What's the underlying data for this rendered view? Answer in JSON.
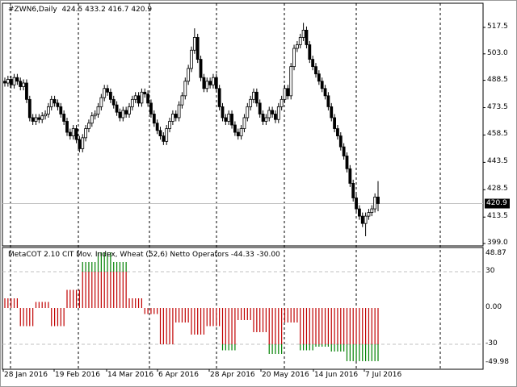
{
  "header": {
    "symbol": "#ZWN6,Daily",
    "ohlc": "424.5 433.2 416.7 420.9"
  },
  "indicator": {
    "label": "MetaCOT 2.10 CIT Mov. Index, Wheat (52,6) Netto Operators -44.33 -30.00"
  },
  "colors": {
    "bull": "#ffffff",
    "bear": "#000000",
    "hist_red": "#c00000",
    "hist_green": "#008000",
    "current_price_bg": "#000000"
  },
  "chart_data": [
    {
      "type": "candlestick",
      "symbol": "#ZWN6",
      "timeframe": "Daily",
      "y_ticks": [
        "517.5",
        "503.0",
        "488.5",
        "473.5",
        "458.5",
        "443.5",
        "428.5",
        "413.5",
        "399.0"
      ],
      "ylim": [
        399.0,
        517.5
      ],
      "current_price": "420.9",
      "close": [
        487,
        489,
        486,
        490,
        488,
        485,
        487,
        478,
        468,
        466,
        468,
        467,
        469,
        470,
        474,
        478,
        476,
        474,
        470,
        466,
        460,
        458,
        462,
        456,
        451,
        457,
        462,
        465,
        469,
        470,
        474,
        479,
        484,
        482,
        478,
        475,
        471,
        468,
        472,
        470,
        474,
        478,
        480,
        476,
        482,
        481,
        476,
        470,
        465,
        461,
        458,
        455,
        462,
        466,
        470,
        468,
        475,
        480,
        488,
        495,
        505,
        512,
        500,
        490,
        484,
        488,
        486,
        490,
        484,
        474,
        468,
        466,
        470,
        464,
        460,
        458,
        462,
        468,
        474,
        478,
        482,
        476,
        470,
        466,
        468,
        472,
        470,
        467,
        474,
        478,
        484,
        480,
        496,
        506,
        508,
        512,
        516,
        508,
        500,
        496,
        492,
        488,
        484,
        480,
        474,
        468,
        462,
        458,
        452,
        447,
        440,
        432,
        424,
        418,
        414,
        410,
        414,
        416,
        418,
        424.5,
        420.9
      ],
      "last_bar": {
        "open": 424.5,
        "high": 433.2,
        "low": 416.7,
        "close": 420.9
      },
      "x_ticks": [
        "28 Jan 2016",
        "19 Feb 2016",
        "14 Mar 2016",
        "6 Apr 2016",
        "28 Apr 2016",
        "20 May 2016",
        "14 Jun 2016",
        "7 Jul 2016"
      ]
    },
    {
      "type": "bar",
      "name": "MetaCOT 2.10 CIT Mov. Index, Wheat (52,6) Netto Operators",
      "y_ticks": [
        "48.87",
        "30",
        "0.00",
        "-30",
        "-49.98"
      ],
      "ylim": [
        -49.98,
        48.87
      ],
      "levels": [
        30,
        -30
      ],
      "weekly_values": [
        8,
        -15,
        5,
        -15,
        15,
        38,
        46,
        38,
        8,
        -5,
        -30,
        -12,
        -22,
        -15,
        -35,
        -10,
        -20,
        -38,
        -12,
        -35,
        -32,
        -36,
        -44,
        -44,
        -44
      ]
    }
  ]
}
